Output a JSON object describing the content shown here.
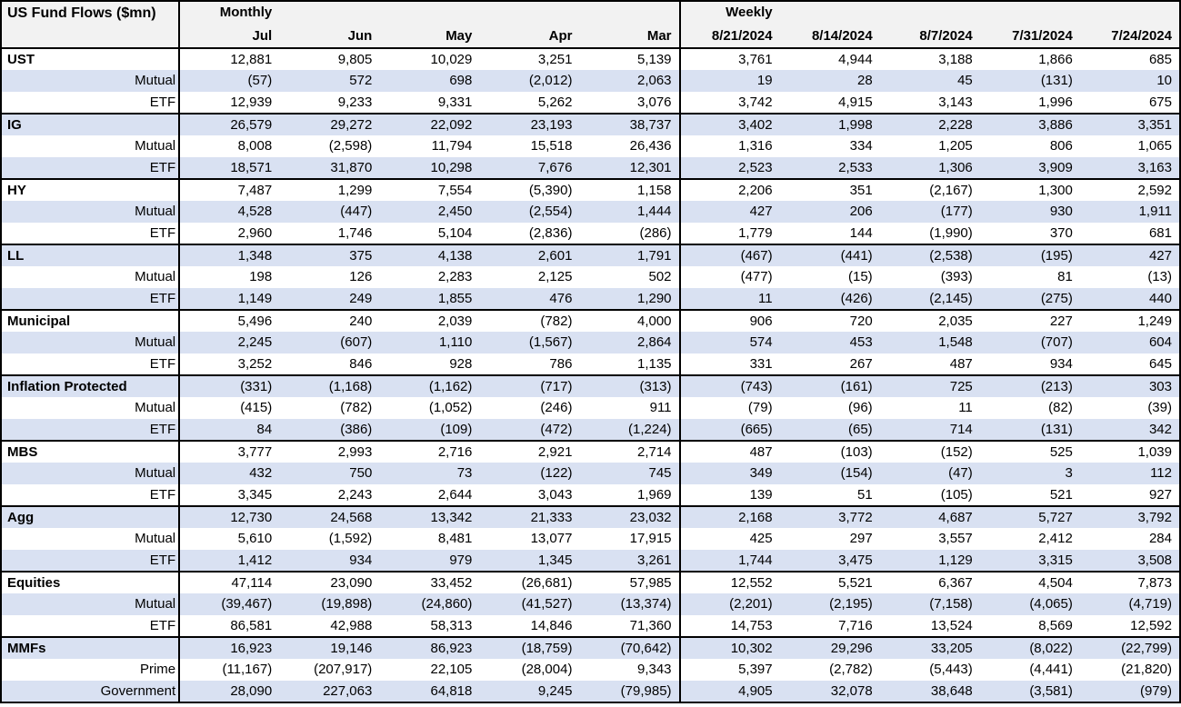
{
  "table": {
    "title": "US Fund Flows ($mn)",
    "sections": {
      "monthly": "Monthly",
      "weekly": "Weekly"
    },
    "monthly_columns": [
      "Jul",
      "Jun",
      "May",
      "Apr",
      "Mar"
    ],
    "weekly_columns": [
      "8/21/2024",
      "8/14/2024",
      "8/7/2024",
      "7/31/2024",
      "7/24/2024"
    ],
    "colors": {
      "band_row": "#D9E1F2",
      "header_bg": "#F2F2F2",
      "border": "#000000",
      "text": "#000000"
    },
    "groups": [
      {
        "name": "UST",
        "rows": [
          {
            "label": "UST",
            "type": "category",
            "monthly": [
              "12,881",
              "9,805",
              "10,029",
              "3,251",
              "5,139"
            ],
            "weekly": [
              "3,761",
              "4,944",
              "3,188",
              "1,866",
              "685"
            ]
          },
          {
            "label": "Mutual",
            "type": "sub",
            "monthly": [
              "(57)",
              "572",
              "698",
              "(2,012)",
              "2,063"
            ],
            "weekly": [
              "19",
              "28",
              "45",
              "(131)",
              "10"
            ]
          },
          {
            "label": "ETF",
            "type": "sub",
            "monthly": [
              "12,939",
              "9,233",
              "9,331",
              "5,262",
              "3,076"
            ],
            "weekly": [
              "3,742",
              "4,915",
              "3,143",
              "1,996",
              "675"
            ]
          }
        ]
      },
      {
        "name": "IG",
        "rows": [
          {
            "label": "IG",
            "type": "category",
            "monthly": [
              "26,579",
              "29,272",
              "22,092",
              "23,193",
              "38,737"
            ],
            "weekly": [
              "3,402",
              "1,998",
              "2,228",
              "3,886",
              "3,351"
            ]
          },
          {
            "label": "Mutual",
            "type": "sub",
            "monthly": [
              "8,008",
              "(2,598)",
              "11,794",
              "15,518",
              "26,436"
            ],
            "weekly": [
              "1,316",
              "334",
              "1,205",
              "806",
              "1,065"
            ]
          },
          {
            "label": "ETF",
            "type": "sub",
            "monthly": [
              "18,571",
              "31,870",
              "10,298",
              "7,676",
              "12,301"
            ],
            "weekly": [
              "2,523",
              "2,533",
              "1,306",
              "3,909",
              "3,163"
            ]
          }
        ]
      },
      {
        "name": "HY",
        "rows": [
          {
            "label": "HY",
            "type": "category",
            "monthly": [
              "7,487",
              "1,299",
              "7,554",
              "(5,390)",
              "1,158"
            ],
            "weekly": [
              "2,206",
              "351",
              "(2,167)",
              "1,300",
              "2,592"
            ]
          },
          {
            "label": "Mutual",
            "type": "sub",
            "monthly": [
              "4,528",
              "(447)",
              "2,450",
              "(2,554)",
              "1,444"
            ],
            "weekly": [
              "427",
              "206",
              "(177)",
              "930",
              "1,911"
            ]
          },
          {
            "label": "ETF",
            "type": "sub",
            "monthly": [
              "2,960",
              "1,746",
              "5,104",
              "(2,836)",
              "(286)"
            ],
            "weekly": [
              "1,779",
              "144",
              "(1,990)",
              "370",
              "681"
            ]
          }
        ]
      },
      {
        "name": "LL",
        "rows": [
          {
            "label": "LL",
            "type": "category",
            "monthly": [
              "1,348",
              "375",
              "4,138",
              "2,601",
              "1,791"
            ],
            "weekly": [
              "(467)",
              "(441)",
              "(2,538)",
              "(195)",
              "427"
            ]
          },
          {
            "label": "Mutual",
            "type": "sub",
            "monthly": [
              "198",
              "126",
              "2,283",
              "2,125",
              "502"
            ],
            "weekly": [
              "(477)",
              "(15)",
              "(393)",
              "81",
              "(13)"
            ]
          },
          {
            "label": "ETF",
            "type": "sub",
            "monthly": [
              "1,149",
              "249",
              "1,855",
              "476",
              "1,290"
            ],
            "weekly": [
              "11",
              "(426)",
              "(2,145)",
              "(275)",
              "440"
            ]
          }
        ]
      },
      {
        "name": "Municipal",
        "rows": [
          {
            "label": "Municipal",
            "type": "category",
            "monthly": [
              "5,496",
              "240",
              "2,039",
              "(782)",
              "4,000"
            ],
            "weekly": [
              "906",
              "720",
              "2,035",
              "227",
              "1,249"
            ]
          },
          {
            "label": "Mutual",
            "type": "sub",
            "monthly": [
              "2,245",
              "(607)",
              "1,110",
              "(1,567)",
              "2,864"
            ],
            "weekly": [
              "574",
              "453",
              "1,548",
              "(707)",
              "604"
            ]
          },
          {
            "label": "ETF",
            "type": "sub",
            "monthly": [
              "3,252",
              "846",
              "928",
              "786",
              "1,135"
            ],
            "weekly": [
              "331",
              "267",
              "487",
              "934",
              "645"
            ]
          }
        ]
      },
      {
        "name": "Inflation Protected",
        "rows": [
          {
            "label": "Inflation Protected",
            "type": "category",
            "monthly": [
              "(331)",
              "(1,168)",
              "(1,162)",
              "(717)",
              "(313)"
            ],
            "weekly": [
              "(743)",
              "(161)",
              "725",
              "(213)",
              "303"
            ]
          },
          {
            "label": "Mutual",
            "type": "sub",
            "monthly": [
              "(415)",
              "(782)",
              "(1,052)",
              "(246)",
              "911"
            ],
            "weekly": [
              "(79)",
              "(96)",
              "11",
              "(82)",
              "(39)"
            ]
          },
          {
            "label": "ETF",
            "type": "sub",
            "monthly": [
              "84",
              "(386)",
              "(109)",
              "(472)",
              "(1,224)"
            ],
            "weekly": [
              "(665)",
              "(65)",
              "714",
              "(131)",
              "342"
            ]
          }
        ]
      },
      {
        "name": "MBS",
        "rows": [
          {
            "label": "MBS",
            "type": "category",
            "monthly": [
              "3,777",
              "2,993",
              "2,716",
              "2,921",
              "2,714"
            ],
            "weekly": [
              "487",
              "(103)",
              "(152)",
              "525",
              "1,039"
            ]
          },
          {
            "label": "Mutual",
            "type": "sub",
            "monthly": [
              "432",
              "750",
              "73",
              "(122)",
              "745"
            ],
            "weekly": [
              "349",
              "(154)",
              "(47)",
              "3",
              "112"
            ]
          },
          {
            "label": "ETF",
            "type": "sub",
            "monthly": [
              "3,345",
              "2,243",
              "2,644",
              "3,043",
              "1,969"
            ],
            "weekly": [
              "139",
              "51",
              "(105)",
              "521",
              "927"
            ]
          }
        ]
      },
      {
        "name": "Agg",
        "rows": [
          {
            "label": "Agg",
            "type": "category",
            "monthly": [
              "12,730",
              "24,568",
              "13,342",
              "21,333",
              "23,032"
            ],
            "weekly": [
              "2,168",
              "3,772",
              "4,687",
              "5,727",
              "3,792"
            ]
          },
          {
            "label": "Mutual",
            "type": "sub",
            "monthly": [
              "5,610",
              "(1,592)",
              "8,481",
              "13,077",
              "17,915"
            ],
            "weekly": [
              "425",
              "297",
              "3,557",
              "2,412",
              "284"
            ]
          },
          {
            "label": "ETF",
            "type": "sub",
            "monthly": [
              "1,412",
              "934",
              "979",
              "1,345",
              "3,261"
            ],
            "weekly": [
              "1,744",
              "3,475",
              "1,129",
              "3,315",
              "3,508"
            ]
          }
        ]
      },
      {
        "name": "Equities",
        "rows": [
          {
            "label": "Equities",
            "type": "category",
            "monthly": [
              "47,114",
              "23,090",
              "33,452",
              "(26,681)",
              "57,985"
            ],
            "weekly": [
              "12,552",
              "5,521",
              "6,367",
              "4,504",
              "7,873"
            ]
          },
          {
            "label": "Mutual",
            "type": "sub",
            "monthly": [
              "(39,467)",
              "(19,898)",
              "(24,860)",
              "(41,527)",
              "(13,374)"
            ],
            "weekly": [
              "(2,201)",
              "(2,195)",
              "(7,158)",
              "(4,065)",
              "(4,719)"
            ]
          },
          {
            "label": "ETF",
            "type": "sub",
            "monthly": [
              "86,581",
              "42,988",
              "58,313",
              "14,846",
              "71,360"
            ],
            "weekly": [
              "14,753",
              "7,716",
              "13,524",
              "8,569",
              "12,592"
            ]
          }
        ]
      },
      {
        "name": "MMFs",
        "rows": [
          {
            "label": "MMFs",
            "type": "category",
            "monthly": [
              "16,923",
              "19,146",
              "86,923",
              "(18,759)",
              "(70,642)"
            ],
            "weekly": [
              "10,302",
              "29,296",
              "33,205",
              "(8,022)",
              "(22,799)"
            ]
          },
          {
            "label": "Prime",
            "type": "sub",
            "monthly": [
              "(11,167)",
              "(207,917)",
              "22,105",
              "(28,004)",
              "9,343"
            ],
            "weekly": [
              "5,397",
              "(2,782)",
              "(5,443)",
              "(4,441)",
              "(21,820)"
            ]
          },
          {
            "label": "Government",
            "type": "sub",
            "monthly": [
              "28,090",
              "227,063",
              "64,818",
              "9,245",
              "(79,985)"
            ],
            "weekly": [
              "4,905",
              "32,078",
              "38,648",
              "(3,581)",
              "(979)"
            ]
          }
        ]
      }
    ]
  }
}
